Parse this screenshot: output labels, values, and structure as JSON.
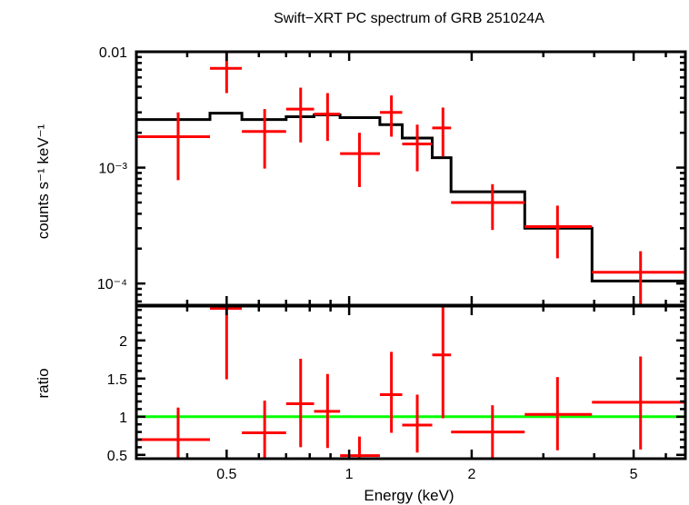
{
  "chart_data": [
    {
      "panel": "spectrum",
      "type": "line",
      "title": "Swift−XRT PC spectrum of GRB 251024A",
      "xlabel": "Energy (keV)",
      "ylabel": "counts s⁻¹ keV⁻¹",
      "xscale": "log",
      "yscale": "log",
      "xlim": [
        0.3,
        6.7
      ],
      "ylim": [
        6.5e-05,
        0.01
      ],
      "yticks": [
        {
          "value": 0.01,
          "label": "0.01"
        },
        {
          "value": 0.001,
          "label": "10⁻³"
        },
        {
          "value": 0.0001,
          "label": "10⁻⁴"
        }
      ],
      "grid": false,
      "series": [
        {
          "name": "data",
          "color": "#ff0000",
          "points": [
            {
              "xlo": 0.3,
              "xhi": 0.455,
              "x": 0.38,
              "y": 0.00185,
              "ylo": 0.00078,
              "yhi": 0.003
            },
            {
              "xlo": 0.455,
              "xhi": 0.545,
              "x": 0.5,
              "y": 0.0072,
              "ylo": 0.0044,
              "yhi": 0.01
            },
            {
              "xlo": 0.545,
              "xhi": 0.7,
              "x": 0.62,
              "y": 0.00205,
              "ylo": 0.00098,
              "yhi": 0.0032
            },
            {
              "xlo": 0.7,
              "xhi": 0.82,
              "x": 0.76,
              "y": 0.0032,
              "ylo": 0.00165,
              "yhi": 0.0049
            },
            {
              "xlo": 0.82,
              "xhi": 0.95,
              "x": 0.885,
              "y": 0.0029,
              "ylo": 0.0017,
              "yhi": 0.0044
            },
            {
              "xlo": 0.95,
              "xhi": 1.19,
              "x": 1.06,
              "y": 0.00132,
              "ylo": 0.00068,
              "yhi": 0.002
            },
            {
              "xlo": 1.19,
              "xhi": 1.35,
              "x": 1.27,
              "y": 0.003,
              "ylo": 0.00185,
              "yhi": 0.0042
            },
            {
              "xlo": 1.35,
              "xhi": 1.6,
              "x": 1.47,
              "y": 0.0016,
              "ylo": 0.00093,
              "yhi": 0.00235
            },
            {
              "xlo": 1.6,
              "xhi": 1.78,
              "x": 1.7,
              "y": 0.0022,
              "ylo": 0.00125,
              "yhi": 0.0033
            },
            {
              "xlo": 1.78,
              "xhi": 2.7,
              "x": 2.25,
              "y": 0.0005,
              "ylo": 0.00029,
              "yhi": 0.00072
            },
            {
              "xlo": 2.7,
              "xhi": 3.95,
              "x": 3.25,
              "y": 0.00031,
              "ylo": 0.000165,
              "yhi": 0.00047
            },
            {
              "xlo": 3.95,
              "xhi": 6.7,
              "x": 5.2,
              "y": 0.000125,
              "ylo": 6.5e-05,
              "yhi": 0.00019
            }
          ]
        },
        {
          "name": "model",
          "color": "#000000",
          "steps": [
            {
              "xlo": 0.3,
              "xhi": 0.455,
              "y": 0.0026
            },
            {
              "xlo": 0.455,
              "xhi": 0.545,
              "y": 0.00295
            },
            {
              "xlo": 0.545,
              "xhi": 0.7,
              "y": 0.0026
            },
            {
              "xlo": 0.7,
              "xhi": 0.82,
              "y": 0.00275
            },
            {
              "xlo": 0.82,
              "xhi": 0.95,
              "y": 0.00285
            },
            {
              "xlo": 0.95,
              "xhi": 1.19,
              "y": 0.0027
            },
            {
              "xlo": 1.19,
              "xhi": 1.35,
              "y": 0.00235
            },
            {
              "xlo": 1.35,
              "xhi": 1.6,
              "y": 0.0018
            },
            {
              "xlo": 1.6,
              "xhi": 1.78,
              "y": 0.00122
            },
            {
              "xlo": 1.78,
              "xhi": 2.7,
              "y": 0.00062
            },
            {
              "xlo": 2.7,
              "xhi": 3.95,
              "y": 0.0003
            },
            {
              "xlo": 3.95,
              "xhi": 6.7,
              "y": 0.000105
            }
          ]
        }
      ]
    },
    {
      "panel": "ratio",
      "type": "scatter",
      "xlabel": "Energy (keV)",
      "ylabel": "ratio",
      "xscale": "log",
      "yscale": "linear",
      "xlim": [
        0.3,
        6.7
      ],
      "ylim": [
        0.45,
        2.45
      ],
      "xticks": [
        {
          "value": 0.5,
          "label": "0.5"
        },
        {
          "value": 1,
          "label": "1"
        },
        {
          "value": 2,
          "label": "2"
        },
        {
          "value": 5,
          "label": "5"
        }
      ],
      "yticks": [
        {
          "value": 0.5,
          "label": "0.5"
        },
        {
          "value": 1,
          "label": "1"
        },
        {
          "value": 1.5,
          "label": "1.5"
        },
        {
          "value": 2,
          "label": "2"
        }
      ],
      "reference_line": {
        "y": 1,
        "color": "#00ff00"
      },
      "series": [
        {
          "name": "ratio",
          "color": "#ff0000",
          "points": [
            {
              "xlo": 0.3,
              "xhi": 0.455,
              "x": 0.38,
              "y": 0.7,
              "ylo": 0.45,
              "yhi": 1.12
            },
            {
              "xlo": 0.455,
              "xhi": 0.545,
              "x": 0.5,
              "y": 2.42,
              "ylo": 1.49,
              "yhi": 2.45
            },
            {
              "xlo": 0.545,
              "xhi": 0.7,
              "x": 0.62,
              "y": 0.79,
              "ylo": 0.45,
              "yhi": 1.21
            },
            {
              "xlo": 0.7,
              "xhi": 0.82,
              "x": 0.76,
              "y": 1.17,
              "ylo": 0.6,
              "yhi": 1.76
            },
            {
              "xlo": 0.82,
              "xhi": 0.95,
              "x": 0.885,
              "y": 1.07,
              "ylo": 0.59,
              "yhi": 1.56
            },
            {
              "xlo": 0.95,
              "xhi": 1.19,
              "x": 1.06,
              "y": 0.49,
              "ylo": 0.45,
              "yhi": 0.74
            },
            {
              "xlo": 1.19,
              "xhi": 1.35,
              "x": 1.27,
              "y": 1.29,
              "ylo": 0.79,
              "yhi": 1.85
            },
            {
              "xlo": 1.35,
              "xhi": 1.6,
              "x": 1.47,
              "y": 0.89,
              "ylo": 0.53,
              "yhi": 1.29
            },
            {
              "xlo": 1.6,
              "xhi": 1.78,
              "x": 1.7,
              "y": 1.81,
              "ylo": 0.98,
              "yhi": 2.45
            },
            {
              "xlo": 1.78,
              "xhi": 2.7,
              "x": 2.25,
              "y": 0.8,
              "ylo": 0.45,
              "yhi": 1.15
            },
            {
              "xlo": 2.7,
              "xhi": 3.95,
              "x": 3.25,
              "y": 1.03,
              "ylo": 0.56,
              "yhi": 1.52
            },
            {
              "xlo": 3.95,
              "xhi": 6.7,
              "x": 5.2,
              "y": 1.19,
              "ylo": 0.57,
              "yhi": 1.79
            }
          ]
        }
      ]
    }
  ]
}
